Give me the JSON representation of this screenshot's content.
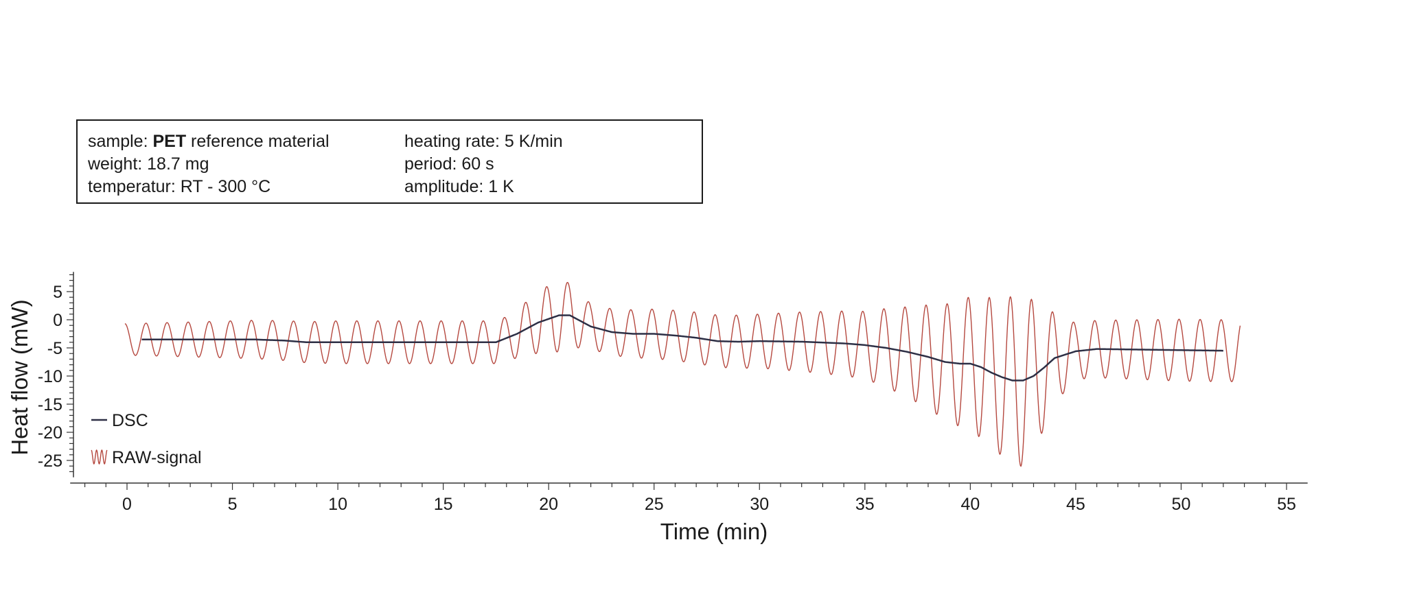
{
  "info_box": {
    "sample_prefix": "sample: ",
    "sample_name": "PET",
    "sample_suffix": " reference material",
    "weight": "weight: 18.7 mg",
    "temperature": "temperatur: RT - 300 °C",
    "heating_rate": "heating rate: 5 K/min",
    "period": "period: 60 s",
    "amplitude": "amplitude: 1 K"
  },
  "colors": {
    "dsc": "#2d2f45",
    "raw": "#b5483f",
    "axis": "#333333"
  },
  "chart_data": {
    "type": "line",
    "xlabel": "Time (min)",
    "ylabel": "Heat flow (mW)",
    "xlim": [
      -2.5,
      56
    ],
    "ylim": [
      -28,
      8.5
    ],
    "xticks": [
      0,
      5,
      10,
      15,
      20,
      25,
      30,
      35,
      40,
      45,
      50,
      55
    ],
    "yticks": [
      5,
      0,
      -5,
      -10,
      -15,
      -20,
      -25
    ],
    "grid": false,
    "legend": {
      "position": "bottom-left",
      "entries": [
        "DSC",
        "RAW-signal"
      ]
    },
    "series": [
      {
        "name": "DSC",
        "x": [
          0.7,
          2,
          4,
          6,
          7.5,
          8.5,
          10,
          12,
          14,
          16,
          17.5,
          18.5,
          19.5,
          20.5,
          21,
          22,
          23,
          24,
          25,
          26,
          27,
          28,
          29,
          30,
          32,
          34,
          35,
          36,
          37,
          38,
          38.8,
          39.5,
          40,
          40.5,
          41,
          41.5,
          42,
          42.5,
          43,
          43.5,
          44,
          45,
          46,
          48,
          50,
          52
        ],
        "y": [
          -3.5,
          -3.5,
          -3.5,
          -3.5,
          -3.7,
          -4.0,
          -4.0,
          -4.0,
          -4.0,
          -4.0,
          -4.0,
          -2.5,
          -0.5,
          0.8,
          0.8,
          -1.2,
          -2.2,
          -2.5,
          -2.5,
          -2.8,
          -3.2,
          -3.8,
          -3.9,
          -3.8,
          -3.9,
          -4.2,
          -4.5,
          -5.0,
          -5.7,
          -6.6,
          -7.5,
          -7.8,
          -7.8,
          -8.4,
          -9.4,
          -10.2,
          -10.8,
          -10.8,
          -10.0,
          -8.5,
          -6.8,
          -5.6,
          -5.2,
          -5.3,
          -5.4,
          -5.5
        ]
      },
      {
        "name": "RAW-signal",
        "x_start": -0.1,
        "x_end": 52.8,
        "period_min": 1.0,
        "amplitude_x": [
          0,
          5,
          10,
          15,
          18,
          20.5,
          22,
          25,
          30,
          35,
          37,
          39,
          41.5,
          42.3,
          43,
          44,
          45,
          50,
          52
        ],
        "amplitude_y": [
          2.8,
          3.3,
          3.8,
          3.8,
          3.8,
          6.5,
          4.0,
          4.4,
          4.8,
          6.0,
          8.0,
          10.5,
          14.0,
          15.5,
          13.5,
          8.0,
          5.0,
          5.5,
          5.5
        ]
      }
    ]
  }
}
